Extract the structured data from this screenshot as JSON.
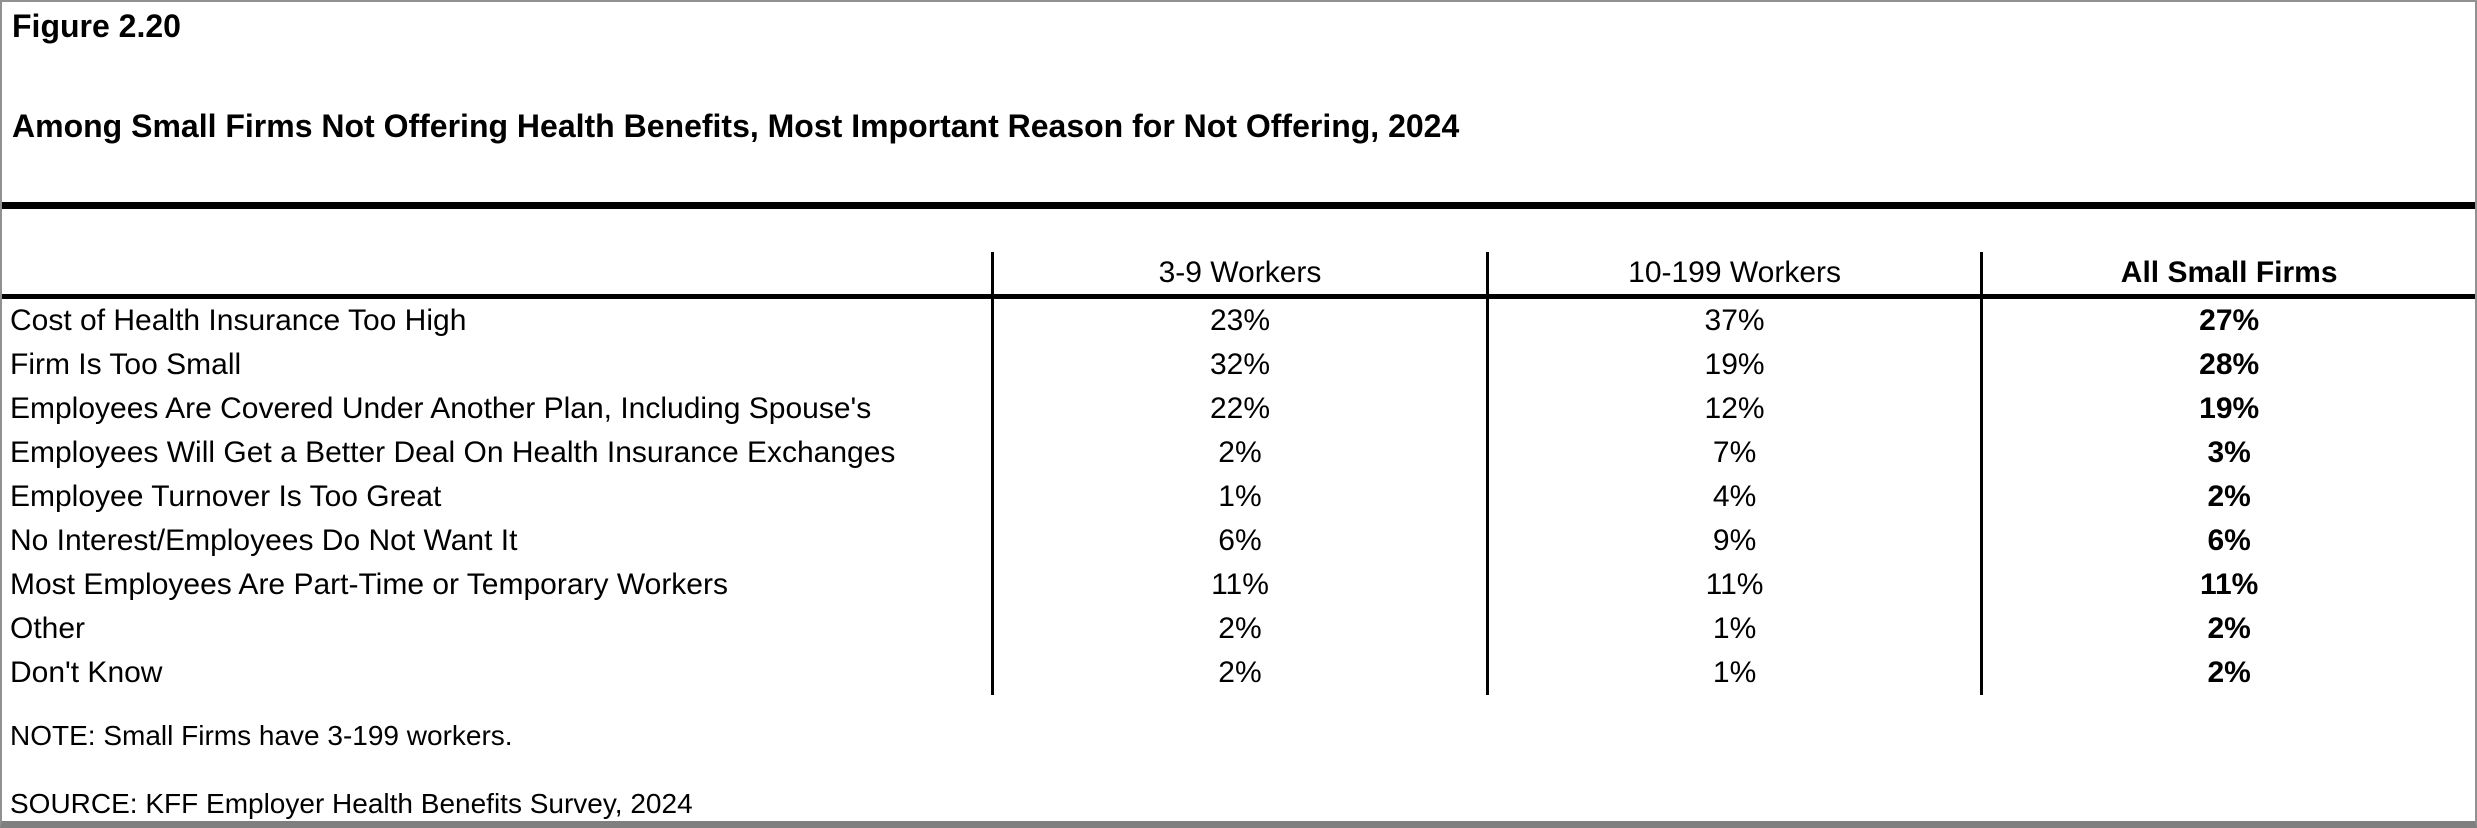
{
  "figure": {
    "label": "Figure 2.20",
    "title": "Among Small Firms Not Offering Health Benefits, Most Important Reason for Not Offering, 2024"
  },
  "table": {
    "columns": [
      "3-9 Workers",
      "10-199 Workers",
      "All Small Firms"
    ],
    "rows": [
      {
        "label": "Cost of Health Insurance Too High",
        "values": [
          "23%",
          "37%",
          "27%"
        ]
      },
      {
        "label": "Firm Is Too Small",
        "values": [
          "32%",
          "19%",
          "28%"
        ]
      },
      {
        "label": "Employees Are Covered Under Another Plan, Including Spouse's",
        "values": [
          "22%",
          "12%",
          "19%"
        ]
      },
      {
        "label": "Employees Will Get a Better Deal On Health Insurance Exchanges",
        "values": [
          "2%",
          "7%",
          "3%"
        ]
      },
      {
        "label": "Employee Turnover Is Too Great",
        "values": [
          "1%",
          "4%",
          "2%"
        ]
      },
      {
        "label": "No Interest/Employees Do Not Want It",
        "values": [
          "6%",
          "9%",
          "6%"
        ]
      },
      {
        "label": "Most Employees Are Part-Time or Temporary Workers",
        "values": [
          "11%",
          "11%",
          "11%"
        ]
      },
      {
        "label": "Other",
        "values": [
          "2%",
          "1%",
          "2%"
        ]
      },
      {
        "label": "Don't Know",
        "values": [
          "2%",
          "1%",
          "2%"
        ]
      }
    ]
  },
  "notes": {
    "note": "NOTE: Small Firms have 3-199 workers.",
    "source": "SOURCE: KFF Employer Health Benefits Survey, 2024"
  },
  "colors": {
    "text": "#000000",
    "rule": "#000000",
    "frame_border": "#919191",
    "bottom_border": "#7f7f7f",
    "background": "#ffffff"
  },
  "chart_data": {
    "type": "table",
    "title": "Among Small Firms Not Offering Health Benefits, Most Important Reason for Not Offering, 2024",
    "figure_number": "Figure 2.20",
    "unit": "%",
    "categories": [
      "Cost of Health Insurance Too High",
      "Firm Is Too Small",
      "Employees Are Covered Under Another Plan, Including Spouse's",
      "Employees Will Get a Better Deal On Health Insurance Exchanges",
      "Employee Turnover Is Too Great",
      "No Interest/Employees Do Not Want It",
      "Most Employees Are Part-Time or Temporary Workers",
      "Other",
      "Don't Know"
    ],
    "series": [
      {
        "name": "3-9 Workers",
        "values": [
          23,
          32,
          22,
          2,
          1,
          6,
          11,
          2,
          2
        ]
      },
      {
        "name": "10-199 Workers",
        "values": [
          37,
          19,
          12,
          7,
          4,
          9,
          11,
          1,
          1
        ]
      },
      {
        "name": "All Small Firms",
        "values": [
          27,
          28,
          19,
          3,
          2,
          6,
          11,
          2,
          2
        ]
      }
    ],
    "note": "NOTE: Small Firms have 3-199 workers.",
    "source": "SOURCE: KFF Employer Health Benefits Survey, 2024",
    "layout_hints": {
      "grid": "vertical column separators only",
      "emphasis": "All Small Firms column bold"
    }
  }
}
